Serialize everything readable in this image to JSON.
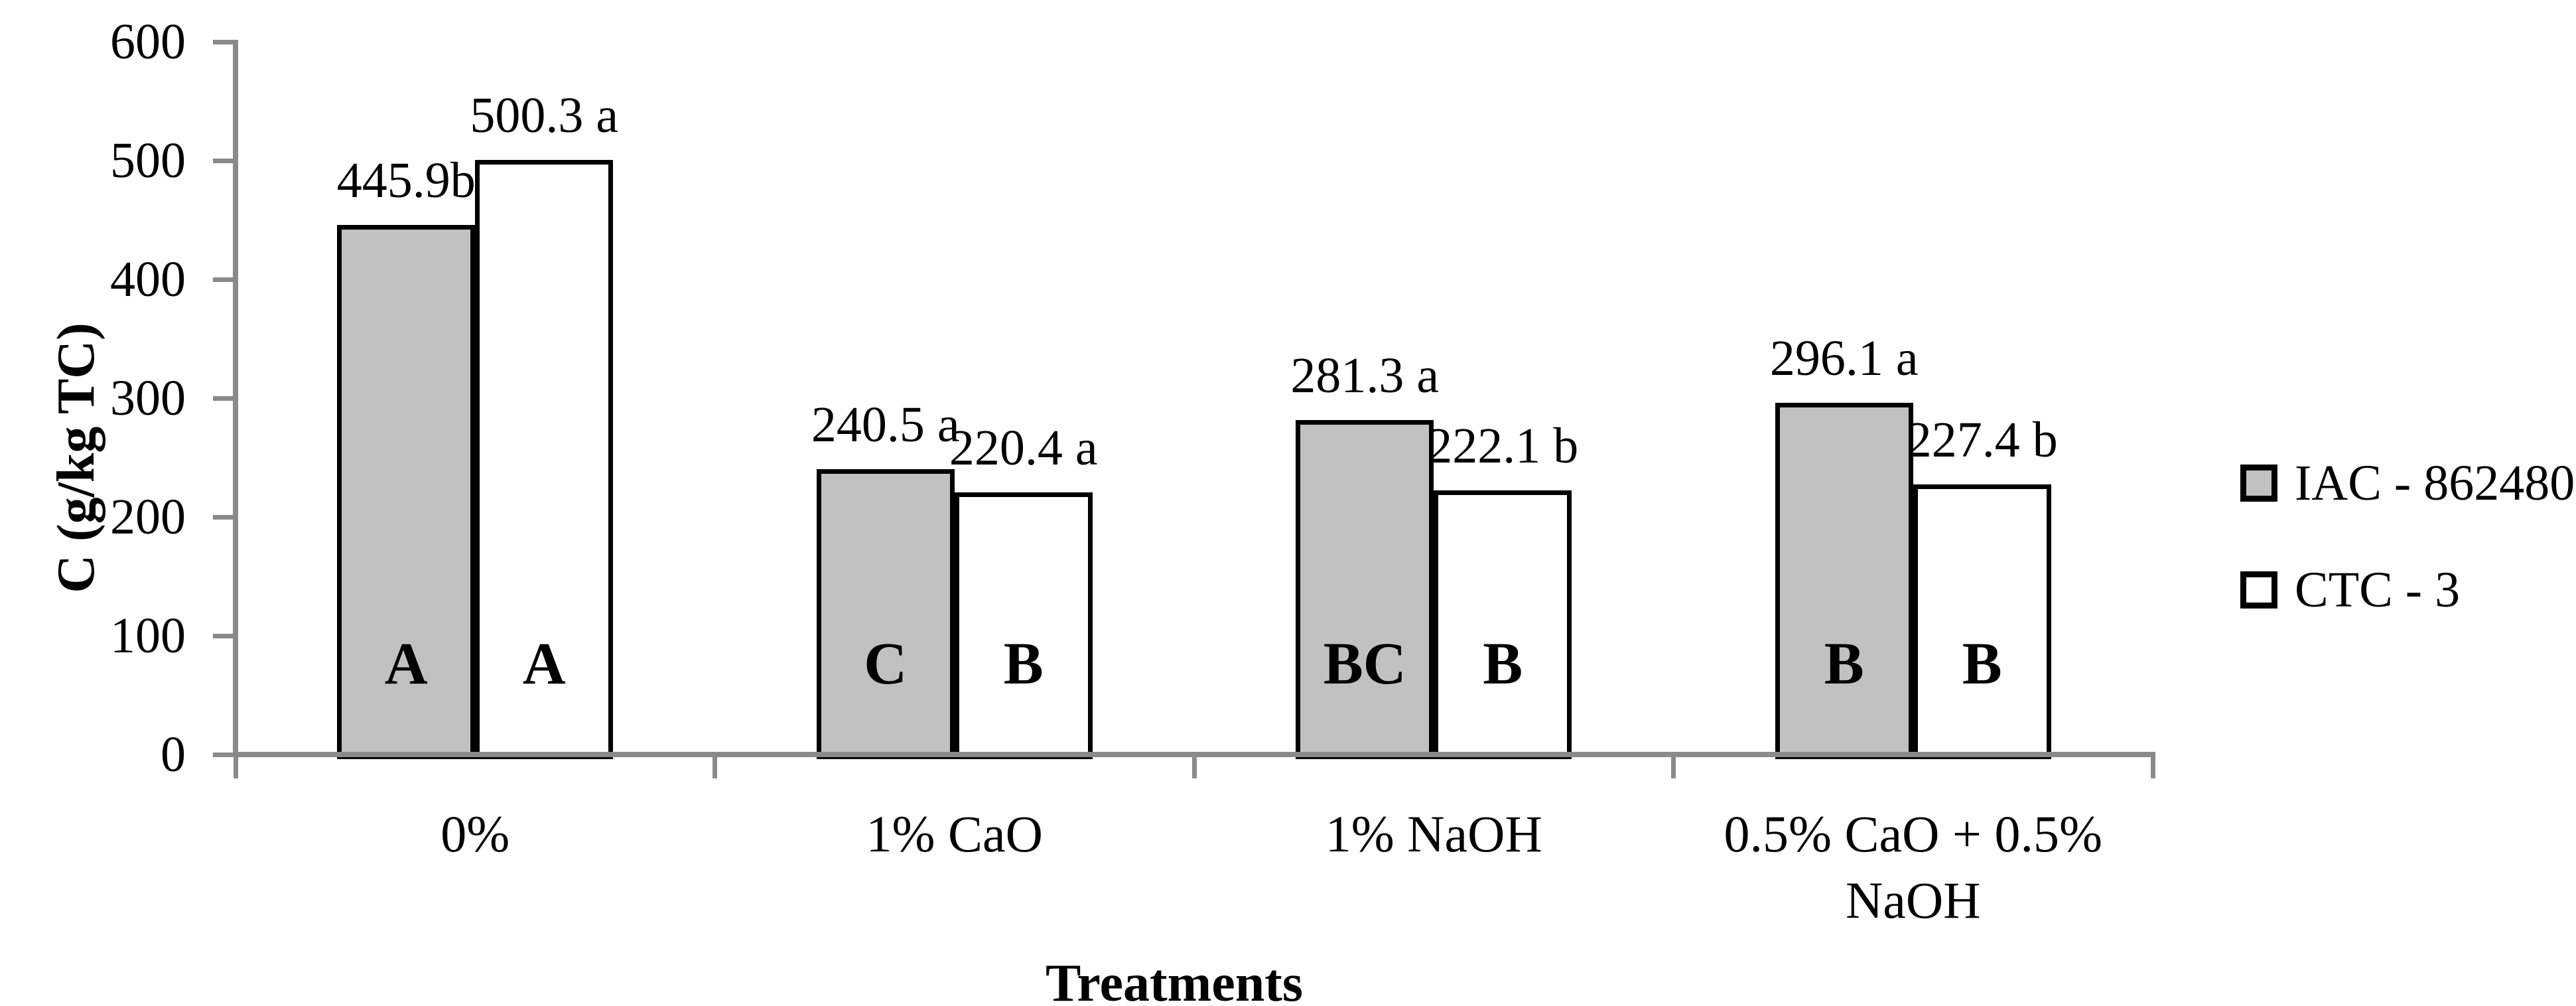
{
  "chart_data": {
    "type": "bar",
    "title": "",
    "xlabel": "Treatments",
    "ylabel": "C (g/kg TC)",
    "ylim": [
      0,
      600
    ],
    "yticks": [
      0,
      100,
      200,
      300,
      400,
      500,
      600
    ],
    "grid": false,
    "legend_position": "right",
    "categories": [
      "0%",
      "1% CaO",
      "1% NaOH",
      "0.5% CaO + 0.5% NaOH"
    ],
    "category_display_lines": [
      [
        "0%"
      ],
      [
        "1% CaO"
      ],
      [
        "1% NaOH"
      ],
      [
        "0.5% CaO + 0.5%",
        "NaOH"
      ]
    ],
    "series": [
      {
        "name": "IAC - 862480",
        "color": "#c1c1c1",
        "values": [
          445.9,
          240.5,
          281.3,
          296.1
        ],
        "data_labels": [
          "445.9b",
          "240.5 a",
          "281.3 a",
          "296.1 a"
        ],
        "bar_letters": [
          "A",
          "C",
          "BC",
          "B"
        ]
      },
      {
        "name": "CTC - 3",
        "color": "#ffffff",
        "values": [
          500.3,
          220.4,
          222.1,
          227.4
        ],
        "data_labels": [
          "500.3 a",
          "220.4 a",
          "222.1 b",
          "227.4 b"
        ],
        "bar_letters": [
          "A",
          "B",
          "B",
          "B"
        ]
      }
    ],
    "colors": {
      "axis": "#8a8a8a",
      "bar_border": "#000000",
      "text": "#000000",
      "background": "#ffffff"
    }
  }
}
